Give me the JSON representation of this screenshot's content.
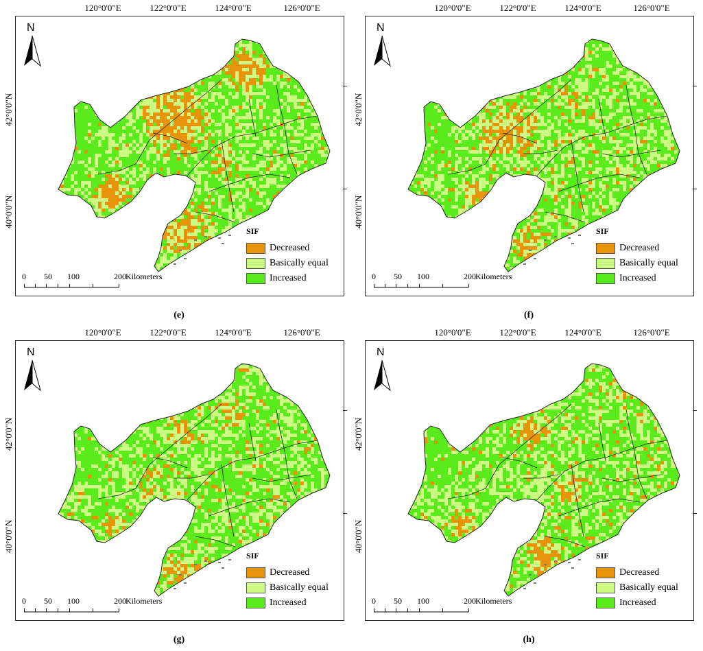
{
  "figure": {
    "panels": [
      {
        "label": "(e)"
      },
      {
        "label": "(f)"
      },
      {
        "label": "(g)"
      },
      {
        "label": "(h)"
      }
    ]
  },
  "axes": {
    "longitude_labels": [
      "120°0'0\"E",
      "122°0'0\"E",
      "124°0'0\"E",
      "126°0'0\"E"
    ],
    "latitude_labels": [
      "42°0'0\"N",
      "40°0'0\"N"
    ]
  },
  "north_arrow": {
    "letter": "N",
    "icon": "north-arrow-icon"
  },
  "legend": {
    "title": "SIF",
    "items": [
      {
        "label": "Decreased",
        "color": "#E8940A"
      },
      {
        "label": "Basically equal",
        "color": "#CCFA82"
      },
      {
        "label": "Increased",
        "color": "#5AEB1C"
      }
    ]
  },
  "scale_bar": {
    "ticks": [
      "0",
      "50",
      "100",
      "200"
    ],
    "unit": "Kilometers"
  },
  "colors": {
    "boundary": "#222222",
    "frame": "#222222"
  }
}
